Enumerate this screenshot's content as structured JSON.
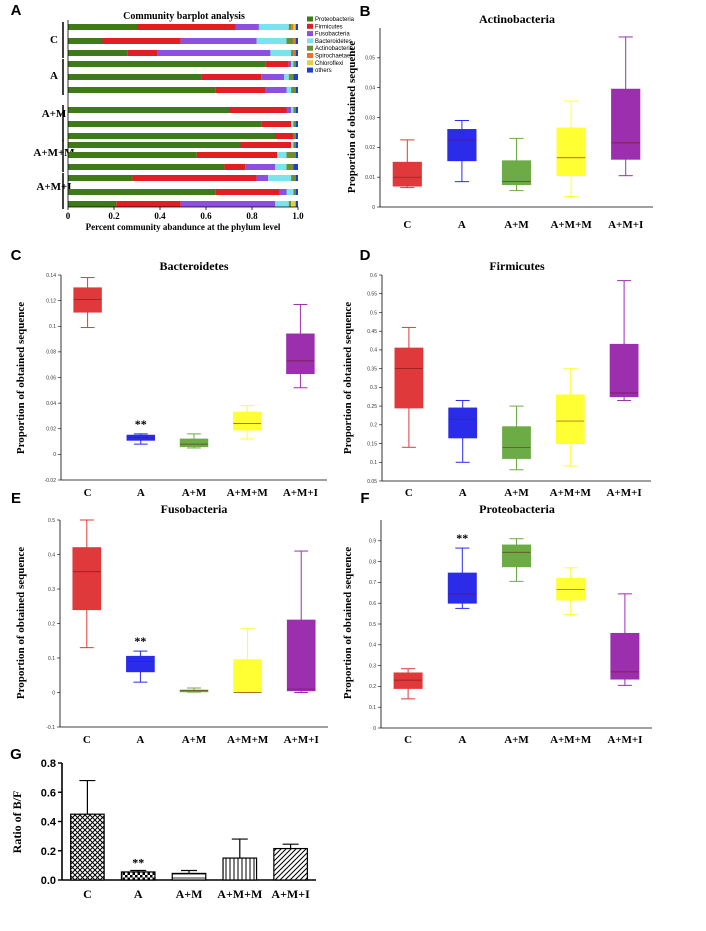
{
  "chart_data": [
    {
      "panel": "A",
      "type": "bar",
      "title": "Community barplot analysis",
      "xlabel": "Percent community abandunce at the phylum level",
      "xlim": [
        0,
        1
      ],
      "xticks": [
        "0",
        "0.2",
        "0.4",
        "0.6",
        "0.8",
        "1.0"
      ],
      "legend": [
        "Proteobacteria",
        "Firmicutes",
        "Fusobacteria",
        "Bacteroidetes",
        "Actinobacteria",
        "Spirochaetae",
        "Chloroflexi",
        "others"
      ],
      "legend_position": "right",
      "colors": [
        "#3f7a1a",
        "#e01e23",
        "#8c4fe0",
        "#7be3ee",
        "#6e8e32",
        "#e8742a",
        "#e3d23b",
        "#1a3fd6"
      ],
      "groups": [
        {
          "label": "C",
          "samples": [
            [
              0.3,
              0.43,
              0.1,
              0.13,
              0.01,
              0.01,
              0.01,
              0.01
            ],
            [
              0.15,
              0.34,
              0.33,
              0.13,
              0.03,
              0.01,
              0.0,
              0.01
            ],
            [
              0.26,
              0.13,
              0.49,
              0.09,
              0.01,
              0.01,
              0.0,
              0.01
            ]
          ]
        },
        {
          "label": "A",
          "samples": [
            [
              0.86,
              0.1,
              0.01,
              0.01,
              0.01,
              0.0,
              0.0,
              0.01
            ],
            [
              0.58,
              0.26,
              0.1,
              0.02,
              0.02,
              0.0,
              0.0,
              0.02
            ],
            [
              0.64,
              0.22,
              0.09,
              0.02,
              0.02,
              0.0,
              0.0,
              0.01
            ]
          ]
        },
        {
          "label": "A+M",
          "samples": [
            [
              0.7,
              0.25,
              0.02,
              0.01,
              0.01,
              0.0,
              0.0,
              0.01
            ],
            [
              0.84,
              0.13,
              0.0,
              0.01,
              0.01,
              0.0,
              0.0,
              0.01
            ],
            [
              0.9,
              0.08,
              0.0,
              0.0,
              0.01,
              0.0,
              0.0,
              0.01
            ]
          ]
        },
        {
          "label": "A+M+M",
          "samples": [
            [
              0.75,
              0.22,
              0.0,
              0.01,
              0.01,
              0.0,
              0.0,
              0.01
            ],
            [
              0.56,
              0.35,
              0.0,
              0.04,
              0.04,
              0.0,
              0.0,
              0.01
            ],
            [
              0.68,
              0.09,
              0.13,
              0.05,
              0.03,
              0.0,
              0.0,
              0.02
            ]
          ]
        },
        {
          "label": "A+M+I",
          "samples": [
            [
              0.28,
              0.54,
              0.05,
              0.1,
              0.02,
              0.0,
              0.0,
              0.01
            ],
            [
              0.64,
              0.28,
              0.03,
              0.03,
              0.01,
              0.0,
              0.0,
              0.01
            ],
            [
              0.21,
              0.28,
              0.41,
              0.06,
              0.01,
              0.0,
              0.02,
              0.01
            ]
          ]
        }
      ]
    },
    {
      "panel": "B",
      "type": "box",
      "title": "Actinobacteria",
      "ylabel": "Proportion of obtained sequence",
      "ylim": [
        0,
        0.06
      ],
      "yticks": [
        0,
        0.01,
        0.02,
        0.03,
        0.04,
        0.05
      ],
      "categories": [
        "C",
        "A",
        "A+M",
        "A+M+M",
        "A+M+I"
      ],
      "boxes": [
        [
          0.0065,
          0.007,
          0.01,
          0.015,
          0.0225
        ],
        [
          0.0085,
          0.0155,
          0.0225,
          0.026,
          0.029
        ],
        [
          0.0055,
          0.0075,
          0.0085,
          0.0155,
          0.023
        ],
        [
          0.0035,
          0.0105,
          0.0165,
          0.0265,
          0.0355
        ],
        [
          0.0105,
          0.016,
          0.0215,
          0.0395,
          0.057
        ]
      ],
      "colors": [
        "#e0393b",
        "#2b2bea",
        "#6dab47",
        "#ffff33",
        "#9b2fae"
      ]
    },
    {
      "panel": "C",
      "type": "box",
      "title": "Bacteroidetes",
      "ylabel": "Proportion of obtained sequence",
      "ylim": [
        -0.02,
        0.14
      ],
      "yticks": [
        -0.02,
        0,
        0.02,
        0.04,
        0.06,
        0.08,
        0.1,
        0.12,
        0.14
      ],
      "categories": [
        "C",
        "A",
        "A+M",
        "A+M+M",
        "A+M+I"
      ],
      "boxes": [
        [
          0.099,
          0.111,
          0.121,
          0.13,
          0.138
        ],
        [
          0.008,
          0.011,
          0.013,
          0.015,
          0.016
        ],
        [
          0.005,
          0.006,
          0.008,
          0.012,
          0.016
        ],
        [
          0.012,
          0.019,
          0.024,
          0.033,
          0.038
        ],
        [
          0.052,
          0.063,
          0.073,
          0.094,
          0.117
        ]
      ],
      "colors": [
        "#e0393b",
        "#2b2bea",
        "#6dab47",
        "#ffff33",
        "#9b2fae"
      ],
      "annotations": [
        {
          "category": "A",
          "text": "**"
        }
      ]
    },
    {
      "panel": "D",
      "type": "box",
      "title": "Firmicutes",
      "ylabel": "Proportion of obtained sequence",
      "ylim": [
        0.05,
        0.6
      ],
      "yticks": [
        0.05,
        0.1,
        0.15,
        0.2,
        0.25,
        0.3,
        0.35,
        0.4,
        0.45,
        0.5,
        0.55,
        0.6
      ],
      "categories": [
        "C",
        "A",
        "A+M",
        "A+M+M",
        "A+M+I"
      ],
      "boxes": [
        [
          0.14,
          0.245,
          0.35,
          0.405,
          0.46
        ],
        [
          0.1,
          0.165,
          0.215,
          0.245,
          0.265
        ],
        [
          0.08,
          0.11,
          0.14,
          0.195,
          0.25
        ],
        [
          0.09,
          0.15,
          0.21,
          0.28,
          0.35
        ],
        [
          0.265,
          0.275,
          0.285,
          0.415,
          0.585
        ]
      ],
      "colors": [
        "#e0393b",
        "#2b2bea",
        "#6dab47",
        "#ffff33",
        "#9b2fae"
      ]
    },
    {
      "panel": "E",
      "type": "box",
      "title": "Fusobacteria",
      "ylabel": "Proportion of obtained sequence",
      "ylim": [
        -0.1,
        0.5
      ],
      "yticks": [
        -0.1,
        0,
        0.1,
        0.2,
        0.3,
        0.4,
        0.5
      ],
      "categories": [
        "C",
        "A",
        "A+M",
        "A+M+M",
        "A+M+I"
      ],
      "boxes": [
        [
          0.13,
          0.24,
          0.35,
          0.42,
          0.5
        ],
        [
          0.03,
          0.06,
          0.09,
          0.105,
          0.12
        ],
        [
          0.001,
          0.002,
          0.005,
          0.007,
          0.013
        ],
        [
          0.0,
          0.0,
          0.0,
          0.095,
          0.185
        ],
        [
          0.0,
          0.005,
          0.01,
          0.21,
          0.41
        ]
      ],
      "colors": [
        "#e0393b",
        "#2b2bea",
        "#6dab47",
        "#ffff33",
        "#9b2fae"
      ],
      "annotations": [
        {
          "category": "A",
          "text": "**"
        }
      ]
    },
    {
      "panel": "F",
      "type": "box",
      "title": "Proteobacteria",
      "ylabel": "Proportion of obtained sequence",
      "ylim": [
        0,
        1.0
      ],
      "yticks": [
        0,
        0.1,
        0.2,
        0.3,
        0.4,
        0.5,
        0.6,
        0.7,
        0.8,
        0.9
      ],
      "categories": [
        "C",
        "A",
        "A+M",
        "A+M+M",
        "A+M+I"
      ],
      "boxes": [
        [
          0.14,
          0.19,
          0.23,
          0.265,
          0.285
        ],
        [
          0.575,
          0.6,
          0.645,
          0.745,
          0.865
        ],
        [
          0.705,
          0.775,
          0.845,
          0.88,
          0.91
        ],
        [
          0.545,
          0.615,
          0.665,
          0.72,
          0.77
        ],
        [
          0.205,
          0.235,
          0.27,
          0.455,
          0.645
        ]
      ],
      "colors": [
        "#e0393b",
        "#2b2bea",
        "#6dab47",
        "#ffff33",
        "#9b2fae"
      ],
      "annotations": [
        {
          "category": "A",
          "text": "**"
        }
      ]
    },
    {
      "panel": "G",
      "type": "bar",
      "ylabel": "Ratio of B/F",
      "ylim": [
        0,
        0.8
      ],
      "yticks": [
        "0.0",
        "0.2",
        "0.4",
        "0.6",
        "0.8"
      ],
      "categories": [
        "C",
        "A",
        "A+M",
        "A+M+M",
        "A+M+I"
      ],
      "values": [
        0.45,
        0.055,
        0.045,
        0.15,
        0.215
      ],
      "errors": [
        0.23,
        0.01,
        0.02,
        0.13,
        0.03
      ],
      "patterns": [
        "crosshatch",
        "checker",
        "horizontal",
        "vertical",
        "diagonal"
      ],
      "annotations": [
        {
          "category": "A",
          "text": "**"
        }
      ]
    }
  ]
}
